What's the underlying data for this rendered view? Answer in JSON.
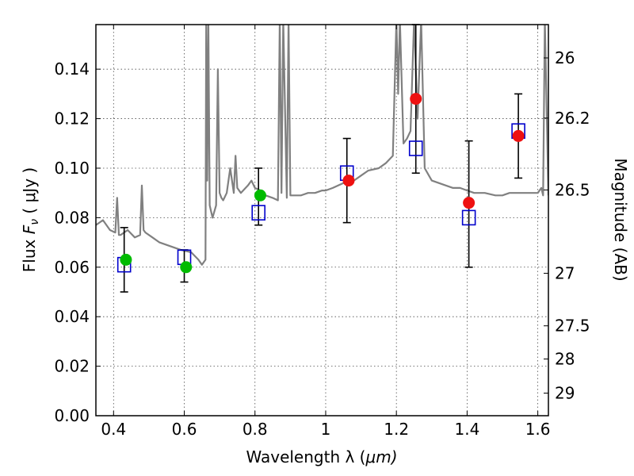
{
  "chart_data": {
    "type": "scatter",
    "title": "",
    "xlabel": "Wavelength  λ (μm)",
    "ylabel": "Flux  F_ν  ( μJy )",
    "ylabel_parts": {
      "prefix": "Flux  ",
      "symbol": "F",
      "subscript": "ν",
      "unit": "  ( μJy )"
    },
    "xlabel_parts": {
      "prefix": "Wavelength  λ (",
      "unit": "μm)"
    },
    "y2label": "Magnitude (AB)",
    "xlim": [
      0.35,
      1.63
    ],
    "ylim": [
      0.0,
      0.158
    ],
    "grid": true,
    "x_ticks": [
      {
        "value": 0.4,
        "label": "0.4"
      },
      {
        "value": 0.6,
        "label": "0.6"
      },
      {
        "value": 0.8,
        "label": "0.8"
      },
      {
        "value": 1.0,
        "label": "1"
      },
      {
        "value": 1.2,
        "label": "1.2"
      },
      {
        "value": 1.4,
        "label": "1.4"
      },
      {
        "value": 1.6,
        "label": "1.6"
      }
    ],
    "y_ticks": [
      {
        "value": 0.0,
        "label": "0.00"
      },
      {
        "value": 0.02,
        "label": "0.02"
      },
      {
        "value": 0.04,
        "label": "0.04"
      },
      {
        "value": 0.06,
        "label": "0.06"
      },
      {
        "value": 0.08,
        "label": "0.08"
      },
      {
        "value": 0.1,
        "label": "0.10"
      },
      {
        "value": 0.12,
        "label": "0.12"
      },
      {
        "value": 0.14,
        "label": "0.14"
      }
    ],
    "y2_ticks": [
      {
        "value": 26.0,
        "label": "26"
      },
      {
        "value": 26.2,
        "label": "26.2"
      },
      {
        "value": 26.5,
        "label": "26.5"
      },
      {
        "value": 27.0,
        "label": "27"
      },
      {
        "value": 27.5,
        "label": "27.5"
      },
      {
        "value": 28.0,
        "label": "28"
      },
      {
        "value": 29.0,
        "label": "29"
      }
    ],
    "series": [
      {
        "kind": "line",
        "color": "#808080",
        "x": [
          0.35,
          0.37,
          0.39,
          0.405,
          0.41,
          0.415,
          0.42,
          0.44,
          0.46,
          0.475,
          0.48,
          0.485,
          0.49,
          0.51,
          0.53,
          0.55,
          0.57,
          0.59,
          0.62,
          0.64,
          0.65,
          0.66,
          0.662,
          0.665,
          0.668,
          0.672,
          0.675,
          0.68,
          0.69,
          0.695,
          0.7,
          0.705,
          0.71,
          0.72,
          0.73,
          0.74,
          0.745,
          0.75,
          0.76,
          0.78,
          0.79,
          0.8,
          0.815,
          0.82,
          0.83,
          0.85,
          0.865,
          0.87,
          0.875,
          0.88,
          0.89,
          0.895,
          0.9,
          0.91,
          0.93,
          0.95,
          0.97,
          0.99,
          1.0,
          1.02,
          1.05,
          1.08,
          1.1,
          1.12,
          1.15,
          1.17,
          1.19,
          1.2,
          1.205,
          1.21,
          1.22,
          1.23,
          1.24,
          1.25,
          1.26,
          1.27,
          1.28,
          1.3,
          1.32,
          1.34,
          1.36,
          1.38,
          1.4,
          1.42,
          1.45,
          1.48,
          1.5,
          1.52,
          1.55,
          1.58,
          1.6,
          1.61,
          1.615,
          1.62,
          1.63
        ],
        "y": [
          0.077,
          0.079,
          0.075,
          0.074,
          0.088,
          0.073,
          0.073,
          0.075,
          0.072,
          0.073,
          0.093,
          0.075,
          0.074,
          0.072,
          0.07,
          0.069,
          0.068,
          0.067,
          0.066,
          0.063,
          0.061,
          0.063,
          0.16,
          0.095,
          0.16,
          0.085,
          0.083,
          0.08,
          0.085,
          0.14,
          0.09,
          0.088,
          0.087,
          0.09,
          0.1,
          0.09,
          0.105,
          0.092,
          0.09,
          0.093,
          0.095,
          0.092,
          0.091,
          0.09,
          0.089,
          0.088,
          0.087,
          0.16,
          0.09,
          0.16,
          0.088,
          0.16,
          0.089,
          0.089,
          0.089,
          0.09,
          0.09,
          0.091,
          0.091,
          0.092,
          0.094,
          0.095,
          0.097,
          0.099,
          0.1,
          0.102,
          0.105,
          0.16,
          0.13,
          0.16,
          0.11,
          0.112,
          0.115,
          0.16,
          0.12,
          0.16,
          0.1,
          0.095,
          0.094,
          0.093,
          0.092,
          0.092,
          0.091,
          0.09,
          0.09,
          0.089,
          0.089,
          0.09,
          0.09,
          0.09,
          0.09,
          0.092,
          0.089,
          0.16,
          0.089
        ]
      },
      {
        "kind": "scatter-circle",
        "color": "#00bb00",
        "x": [
          0.435,
          0.605,
          0.815
        ],
        "y": [
          0.063,
          0.06,
          0.089
        ]
      },
      {
        "kind": "scatter-circle",
        "color": "#ee1111",
        "x": [
          1.065,
          1.255,
          1.405,
          1.545
        ],
        "y": [
          0.095,
          0.128,
          0.086,
          0.113
        ]
      },
      {
        "kind": "scatter-square",
        "color": "#0000cc",
        "x": [
          0.43,
          0.6,
          0.81,
          1.06,
          1.255,
          1.405,
          1.545
        ],
        "y": [
          0.061,
          0.064,
          0.082,
          0.098,
          0.108,
          0.08,
          0.115
        ],
        "yerr_low": [
          0.05,
          0.054,
          0.077,
          0.078,
          0.098,
          0.06,
          0.096
        ],
        "yerr_high": [
          0.076,
          0.067,
          0.1,
          0.112,
          0.158,
          0.111,
          0.13
        ]
      }
    ]
  }
}
